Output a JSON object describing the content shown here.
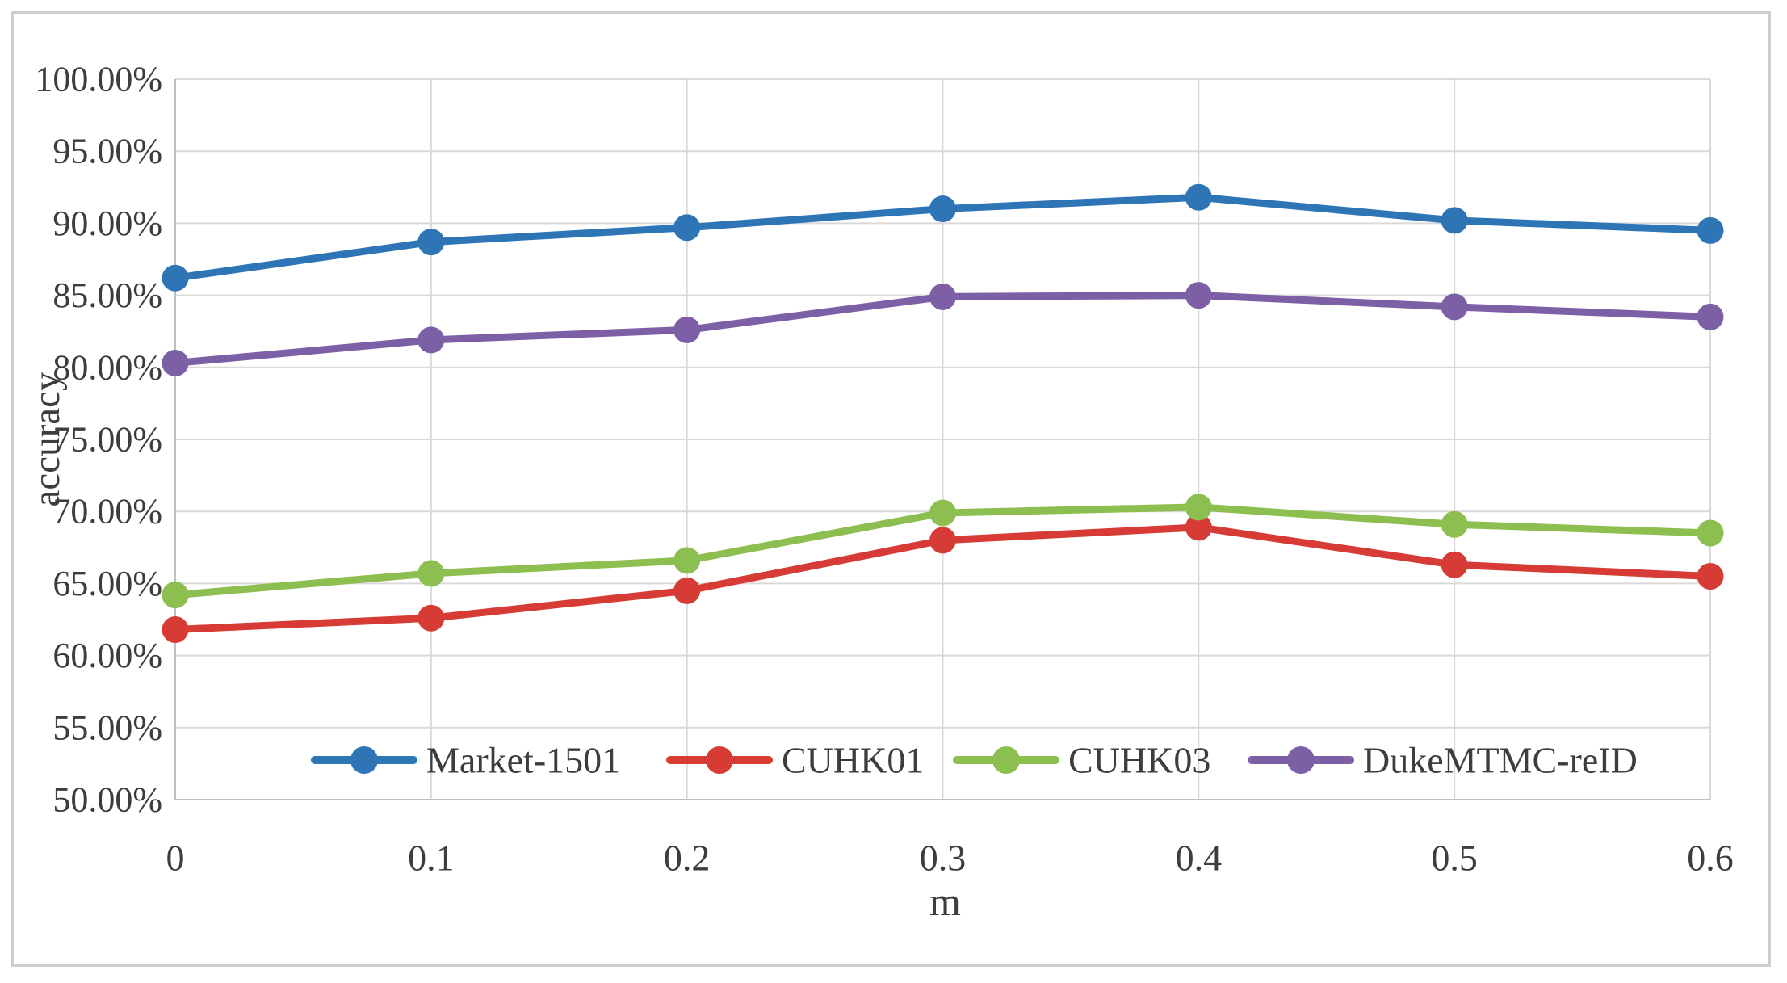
{
  "chart_data": {
    "type": "line",
    "title": "",
    "xlabel": "m",
    "ylabel": "accuracy",
    "x": [
      0,
      0.1,
      0.2,
      0.3,
      0.4,
      0.5,
      0.6
    ],
    "x_tick_labels": [
      "0",
      "0.1",
      "0.2",
      "0.3",
      "0.4",
      "0.5",
      "0.6"
    ],
    "ylim": [
      50,
      100
    ],
    "y_tick_step": 5,
    "y_tick_labels": [
      "50.00%",
      "55.00%",
      "60.00%",
      "65.00%",
      "70.00%",
      "75.00%",
      "80.00%",
      "85.00%",
      "90.00%",
      "95.00%",
      "100.00%"
    ],
    "grid": true,
    "legend_position": "inside-bottom",
    "series": [
      {
        "name": "Market-1501",
        "color": "#2E75B6",
        "values": [
          86.2,
          88.7,
          89.7,
          91.0,
          91.8,
          90.2,
          89.5
        ]
      },
      {
        "name": "CUHK01",
        "color": "#D63C35",
        "values": [
          61.8,
          62.6,
          64.5,
          68.0,
          68.9,
          66.3,
          65.5
        ]
      },
      {
        "name": "CUHK03",
        "color": "#8CBE50",
        "values": [
          64.2,
          65.7,
          66.6,
          69.9,
          70.3,
          69.1,
          68.5
        ]
      },
      {
        "name": "DukeMTMC-reID",
        "color": "#7C5FA5",
        "values": [
          80.3,
          81.9,
          82.6,
          84.9,
          85.0,
          84.2,
          83.5
        ]
      }
    ],
    "colors": {
      "gridline": "#D9D9D9",
      "axis_line": "#BFBFBF",
      "tick_text": "#3D3D3D"
    }
  }
}
